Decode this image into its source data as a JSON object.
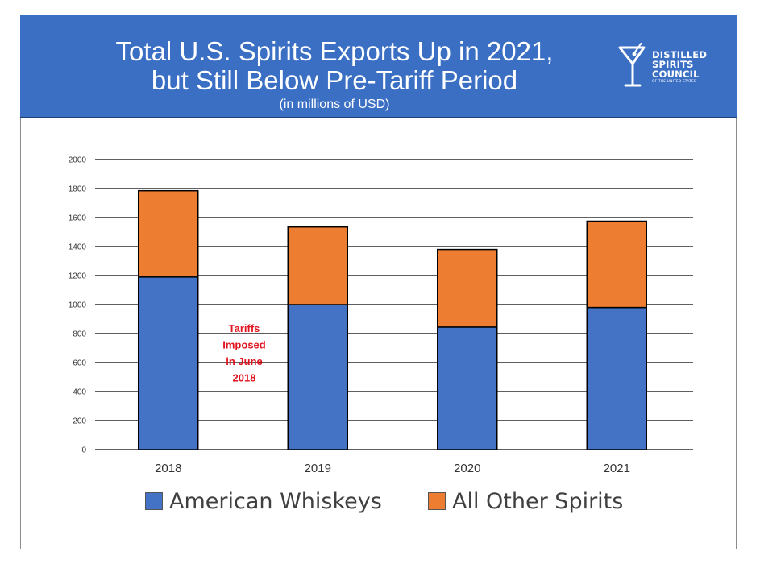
{
  "header": {
    "title_line1": "Total U.S. Spirits Exports Up in 2021,",
    "title_line2": "but Still Below Pre-Tariff Period",
    "subtitle": "(in millions of USD)",
    "logo_lines": [
      "DISTILLED",
      "SPIRITS",
      "COUNCIL"
    ],
    "logo_small": "OF THE UNITED STATES",
    "logo_icon": "martini-glass-icon",
    "banner_color": "#3a6fc4"
  },
  "chart_data": {
    "type": "bar",
    "stacked": true,
    "categories": [
      "2018",
      "2019",
      "2020",
      "2021"
    ],
    "series": [
      {
        "name": "American Whiskeys",
        "color": "#4472c4",
        "values": [
          1190,
          1000,
          845,
          980
        ]
      },
      {
        "name": "All Other Spirits",
        "color": "#ed7d31",
        "values": [
          595,
          535,
          535,
          595
        ]
      }
    ],
    "ylim": [
      0,
      2000
    ],
    "yticks": [
      0,
      200,
      400,
      600,
      800,
      1000,
      1200,
      1400,
      1600,
      1800,
      2000
    ],
    "grid": true,
    "legend": "bottom",
    "annotation": {
      "lines": [
        "Tariffs",
        "Imposed",
        "in June",
        "2018"
      ],
      "color": "#e0141e"
    }
  }
}
